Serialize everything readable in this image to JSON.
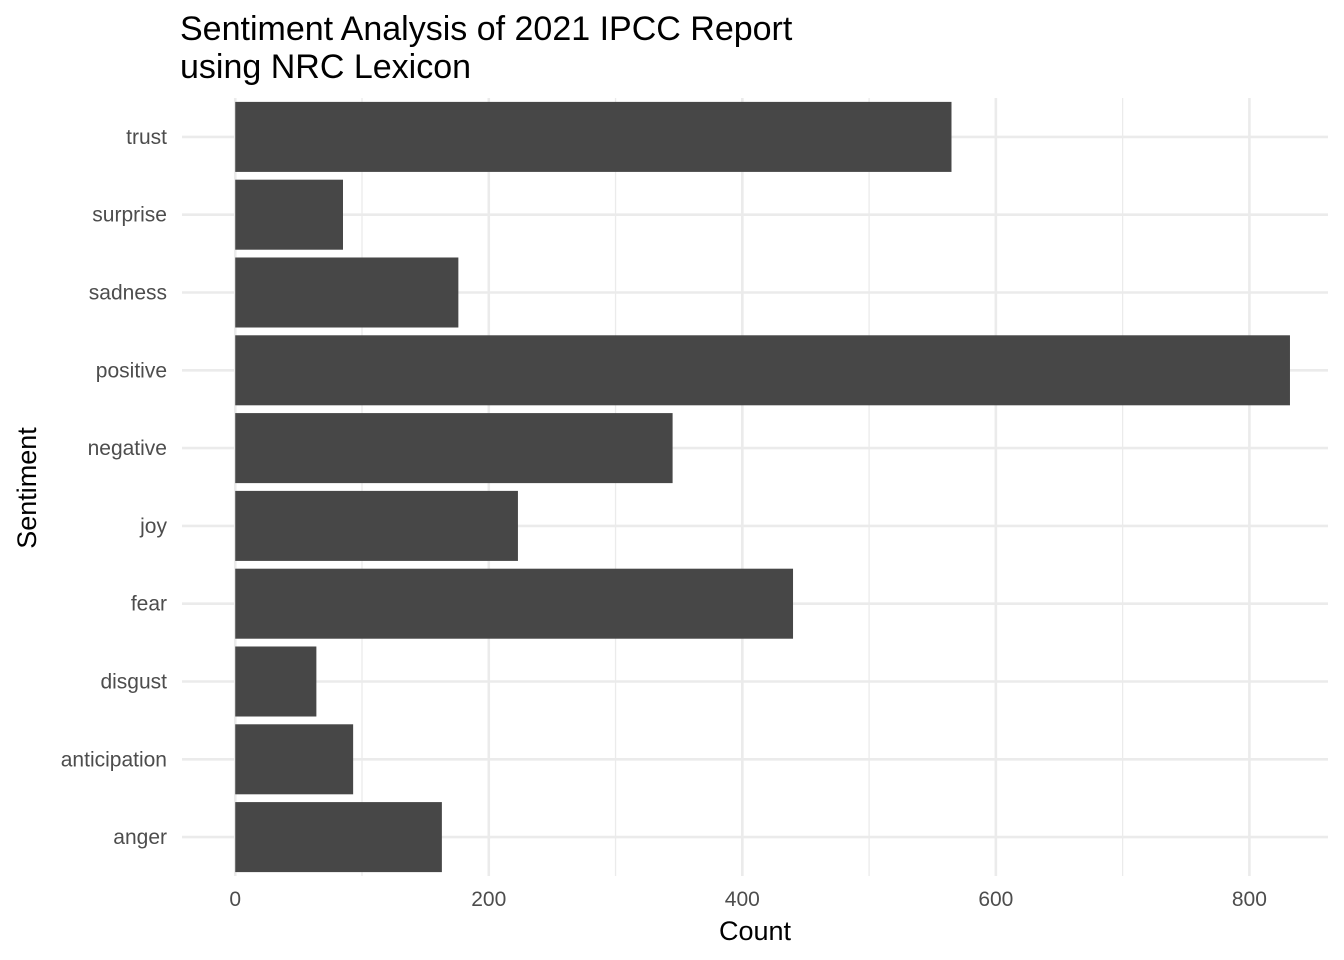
{
  "chart_data": {
    "type": "bar",
    "orientation": "horizontal",
    "title": "Sentiment Analysis of 2021 IPCC Report",
    "subtitle": "using NRC Lexicon",
    "xlabel": "Count",
    "ylabel": "Sentiment",
    "categories": [
      "anger",
      "anticipation",
      "disgust",
      "fear",
      "joy",
      "negative",
      "positive",
      "sadness",
      "surprise",
      "trust"
    ],
    "values": [
      163,
      93,
      64,
      440,
      223,
      345,
      832,
      176,
      85,
      565
    ],
    "xlim": [
      -42,
      862
    ],
    "xticks": [
      0,
      200,
      400,
      600,
      800
    ],
    "xtick_labels": [
      "0",
      "200",
      "400",
      "600",
      "800"
    ],
    "grid": true,
    "bar_color": "#474747"
  }
}
